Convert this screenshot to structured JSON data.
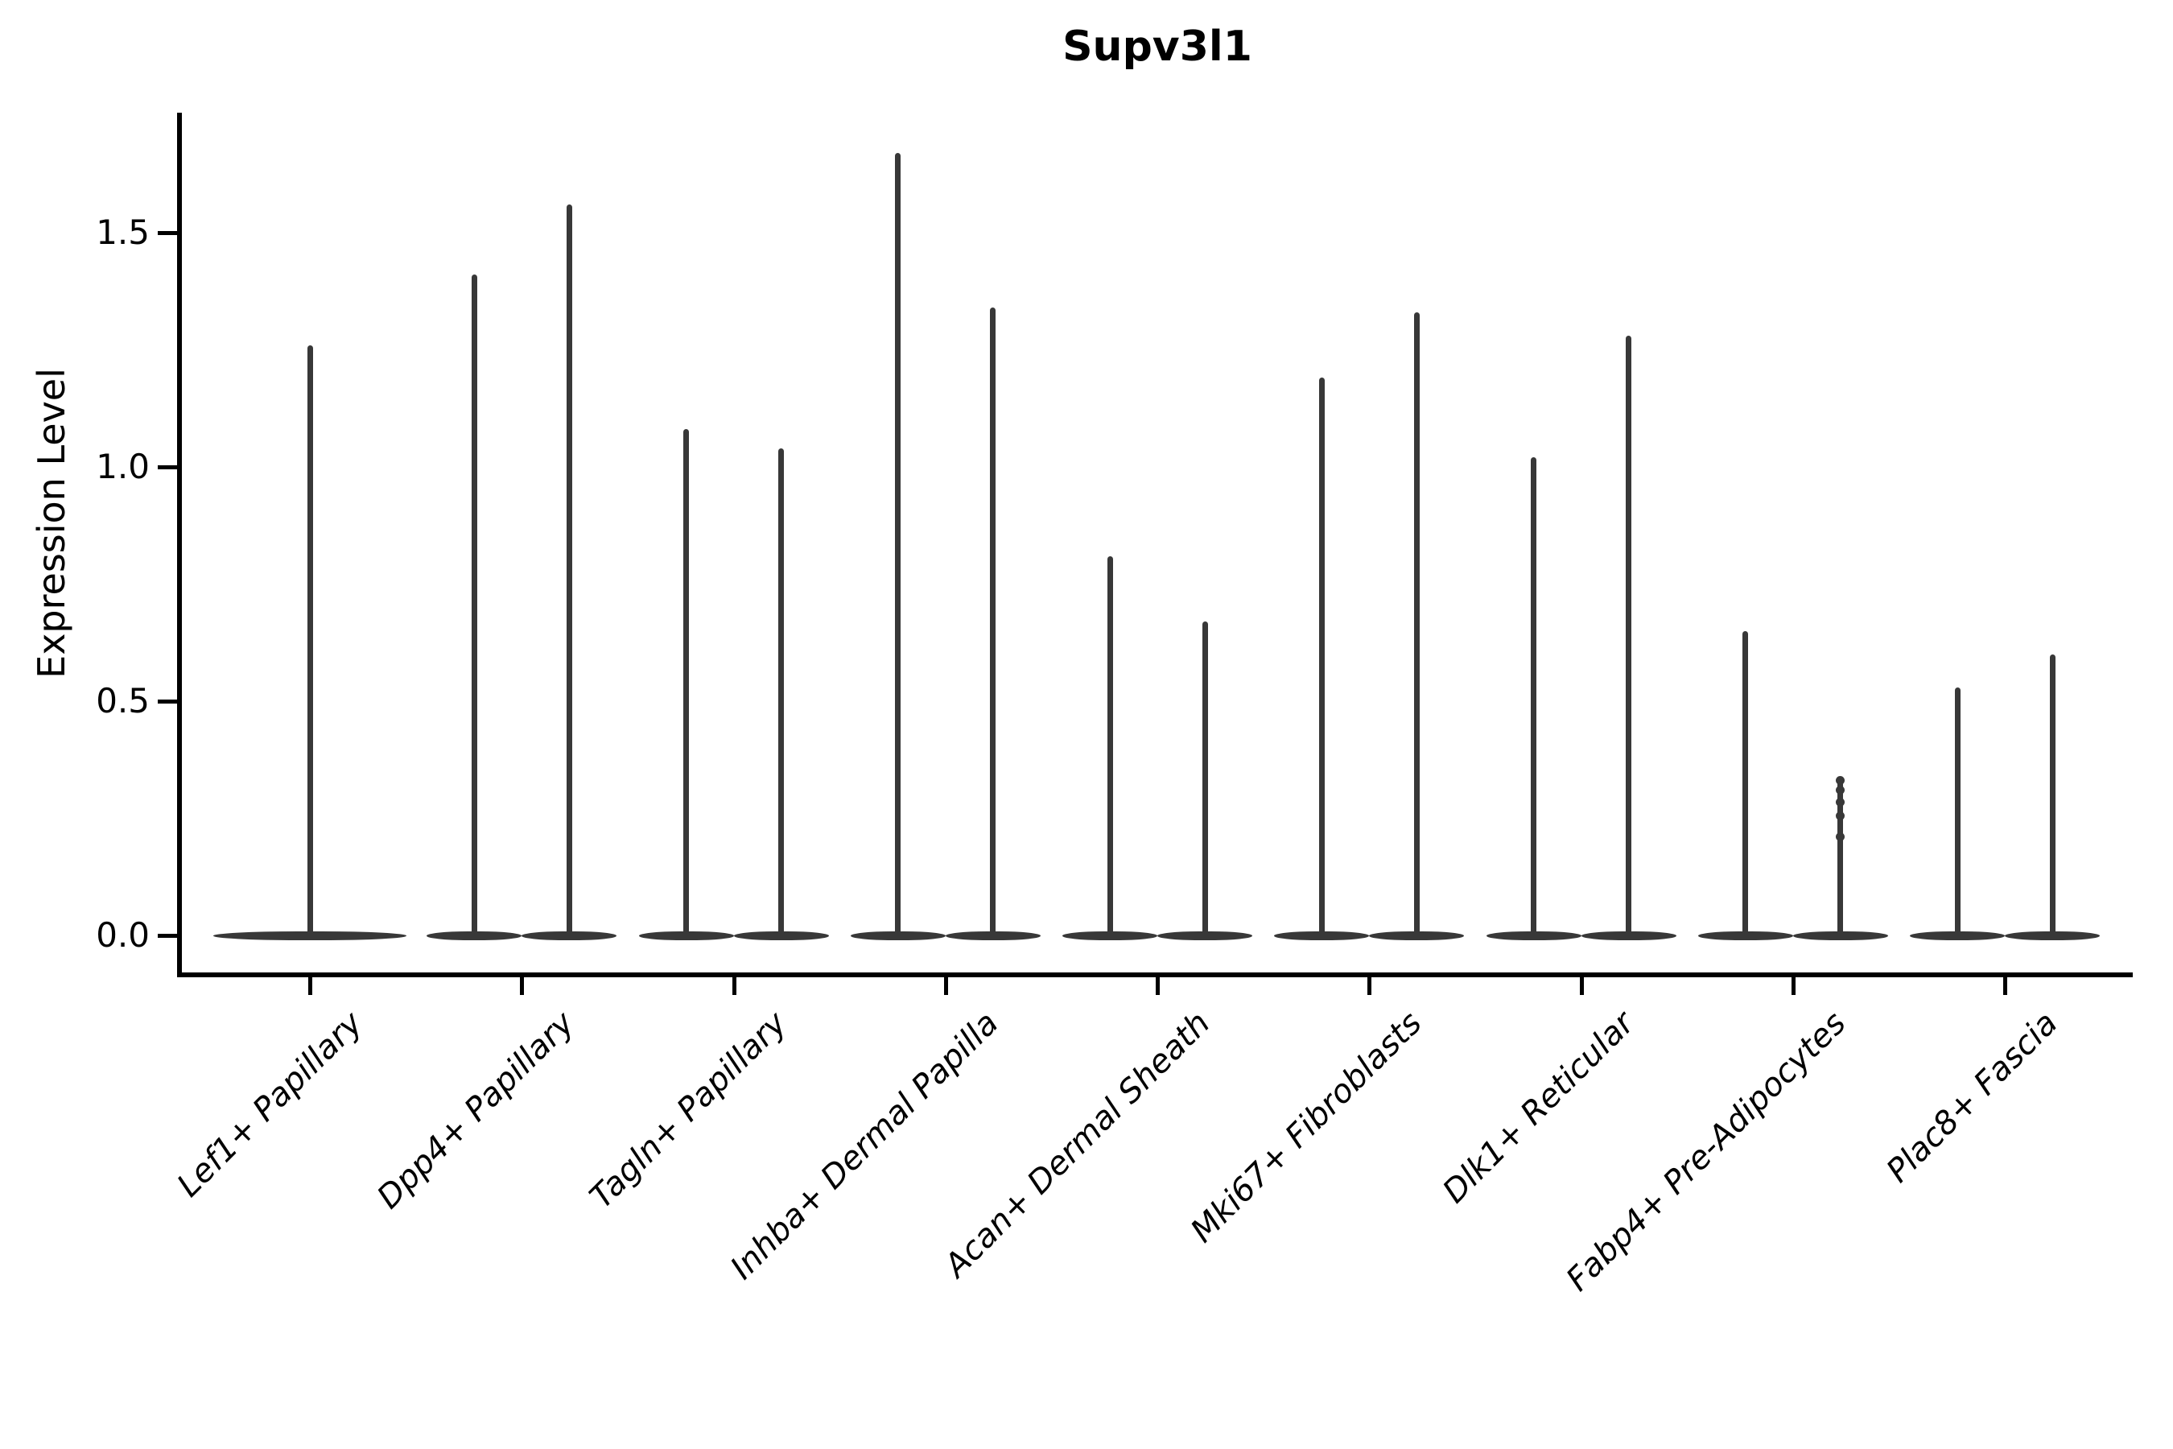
{
  "title": "Supv3l1",
  "y_axis": {
    "label": "Expression Level",
    "tick_labels": [
      "0.0",
      "0.5",
      "1.0",
      "1.5"
    ],
    "tick_values": [
      0.0,
      0.5,
      1.0,
      1.5
    ]
  },
  "chart_data": {
    "type": "violin",
    "title": "Supv3l1",
    "xlabel": "",
    "ylabel": "Expression Level",
    "ylim": [
      -0.08,
      1.76
    ],
    "yticks": [
      0.0,
      0.5,
      1.0,
      1.5
    ],
    "grid": false,
    "legend": "none",
    "categories": [
      "Lef1+ Papillary",
      "Dpp4+ Papillary",
      "Tagln+ Papillary",
      "Inhba+ Dermal Papilla",
      "Acan+ Dermal Sheath",
      "Mki67+ Fibroblasts",
      "Dlk1+ Reticular",
      "Fabp4+ Pre-Adipocytes",
      "Plac8+ Fascia"
    ],
    "description": "Violin plot of Supv3l1 expression; each violin is collapsed at 0 with a thin density spike reaching the max expression value. Most categories contain two violins; the first category has one.",
    "groups": [
      {
        "category": "Lef1+ Papillary",
        "violins": [
          {
            "max": 1.26
          }
        ]
      },
      {
        "category": "Dpp4+ Papillary",
        "violins": [
          {
            "max": 1.41
          },
          {
            "max": 1.56
          }
        ]
      },
      {
        "category": "Tagln+ Papillary",
        "violins": [
          {
            "max": 1.08
          },
          {
            "max": 1.04
          }
        ]
      },
      {
        "category": "Inhba+ Dermal Papilla",
        "violins": [
          {
            "max": 1.67
          },
          {
            "max": 1.34
          }
        ]
      },
      {
        "category": "Acan+ Dermal Sheath",
        "violins": [
          {
            "max": 0.81
          },
          {
            "max": 0.67
          }
        ]
      },
      {
        "category": "Mki67+ Fibroblasts",
        "violins": [
          {
            "max": 1.19
          },
          {
            "max": 1.33
          }
        ]
      },
      {
        "category": "Dlk1+ Reticular",
        "violins": [
          {
            "max": 1.02
          },
          {
            "max": 1.28
          }
        ]
      },
      {
        "category": "Fabp4+ Pre-Adipocytes",
        "violins": [
          {
            "max": 0.65
          },
          {
            "max": 0.33,
            "points": [
              0.33,
              0.31,
              0.285,
              0.255,
              0.21
            ]
          }
        ]
      },
      {
        "category": "Plac8+ Fascia",
        "violins": [
          {
            "max": 0.53
          },
          {
            "max": 0.6
          }
        ]
      }
    ],
    "colors": {
      "violin": "#383838",
      "axis": "#000000",
      "text": "#000000"
    }
  }
}
